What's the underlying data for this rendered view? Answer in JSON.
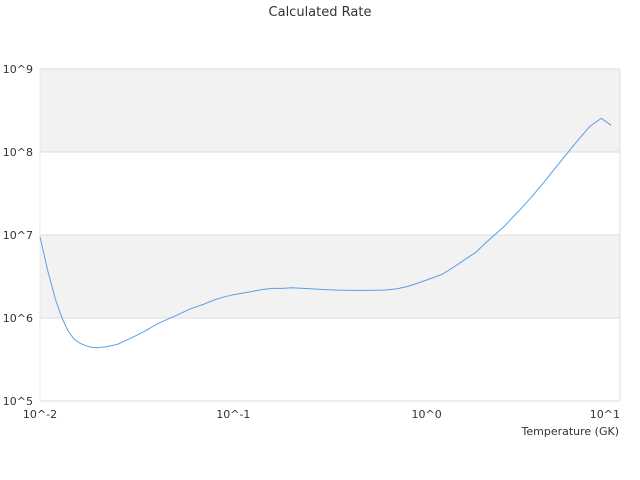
{
  "chart_data": {
    "type": "line",
    "title": "Calculated Rate",
    "xlabel": "Temperature (GK)",
    "ylabel": "",
    "x_scale": "log",
    "y_scale": "log",
    "xlim": [
      0.01,
      10
    ],
    "ylim": [
      100000,
      1000000000
    ],
    "x_ticks": [
      "10^-2",
      "10^-1",
      "10^0",
      "10^1"
    ],
    "y_ticks": [
      "10^5",
      "10^6",
      "10^7",
      "10^8",
      "10^9"
    ],
    "grid": true,
    "banded_background": true,
    "legend": "none",
    "series": [
      {
        "color": "#5b9ee8",
        "x": [
          0.01,
          0.011,
          0.012,
          0.013,
          0.014,
          0.015,
          0.016,
          0.017,
          0.018,
          0.019,
          0.02,
          0.022,
          0.025,
          0.028,
          0.03,
          0.035,
          0.04,
          0.045,
          0.05,
          0.06,
          0.07,
          0.08,
          0.09,
          0.1,
          0.12,
          0.14,
          0.16,
          0.18,
          0.2,
          0.25,
          0.3,
          0.35,
          0.4,
          0.5,
          0.6,
          0.7,
          0.8,
          0.9,
          1.0,
          1.2,
          1.4,
          1.6,
          1.8,
          2.0,
          2.5,
          3.0,
          3.5,
          4.0,
          5.0,
          6.0,
          7.0,
          8.0,
          9.0
        ],
        "y": [
          9500000,
          3600000,
          1700000,
          1000000,
          690000,
          560000,
          500000,
          470000,
          450000,
          440000,
          440000,
          450000,
          480000,
          540000,
          580000,
          700000,
          840000,
          950000,
          1060000,
          1290000,
          1460000,
          1650000,
          1800000,
          1910000,
          2050000,
          2200000,
          2270000,
          2270000,
          2320000,
          2250000,
          2200000,
          2170000,
          2150000,
          2150000,
          2170000,
          2240000,
          2400000,
          2630000,
          2870000,
          3350000,
          4200000,
          5180000,
          6200000,
          7900000,
          12500000,
          19500000,
          29000000,
          42000000,
          80000000,
          135000000,
          205000000,
          255000000,
          210000000
        ]
      }
    ]
  }
}
